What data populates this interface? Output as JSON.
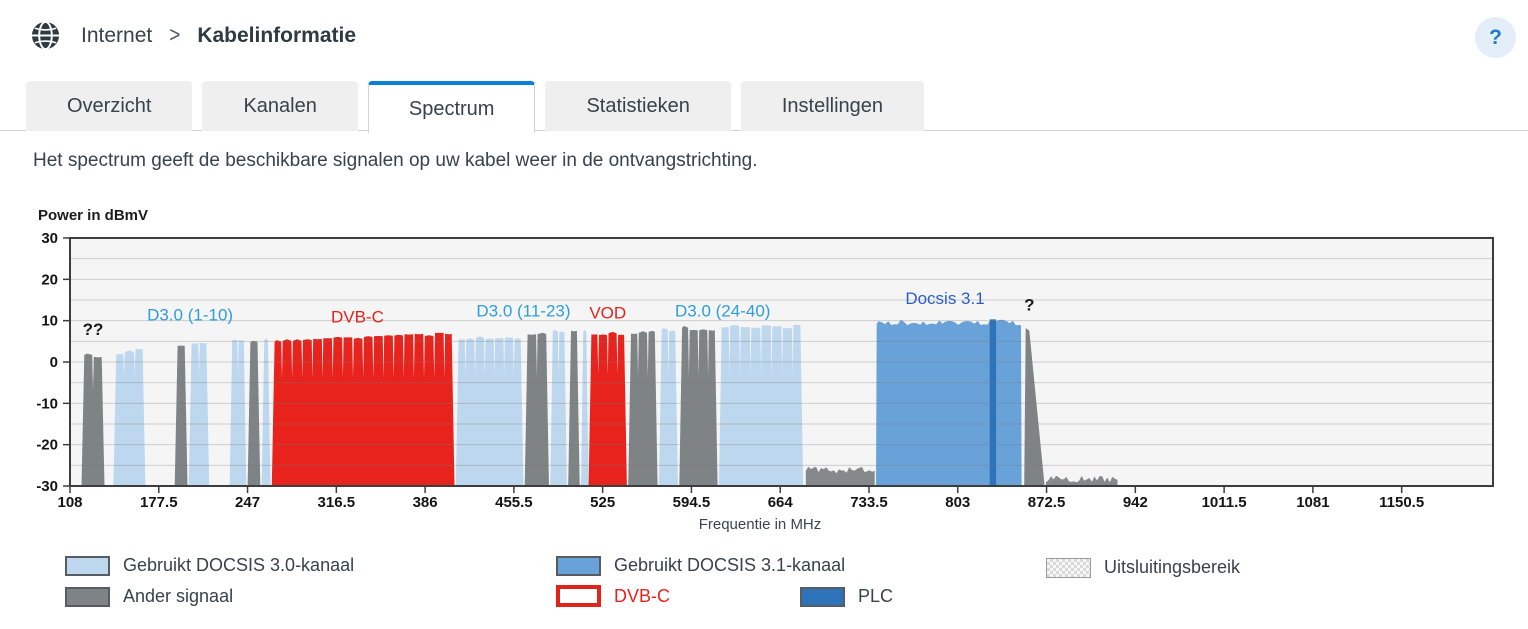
{
  "page": {
    "accent": "#0d7fd4"
  },
  "header": {
    "breadcrumb": {
      "root": "Internet",
      "separator": ">",
      "current": "Kabelinformatie"
    },
    "help": "?"
  },
  "tabs": [
    {
      "label": "Overzicht",
      "active": false
    },
    {
      "label": "Kanalen",
      "active": false
    },
    {
      "label": "Spectrum",
      "active": true
    },
    {
      "label": "Statistieken",
      "active": false
    },
    {
      "label": "Instellingen",
      "active": false
    }
  ],
  "description": "Het spectrum geeft de beschikbare signalen op uw kabel weer in de ontvangstrichting.",
  "chart_data": {
    "type": "area",
    "xlabel": "Frequentie in MHz",
    "ylabel": "Power in dBmV",
    "xlim": [
      108,
      1222
    ],
    "ylim": [
      -30,
      30
    ],
    "x_ticks": [
      108,
      177.5,
      247,
      316.5,
      386,
      455.5,
      525,
      594.5,
      664,
      733.5,
      803,
      872.5,
      942,
      1011.5,
      1081,
      1150.5
    ],
    "y_ticks": [
      30,
      20,
      10,
      0,
      -10,
      -20,
      -30
    ],
    "grid_minor_step_db": 5,
    "legend_position": "bottom",
    "colors": {
      "plot_bg": "#f5f5f6",
      "grid": "rgba(125,125,125,0.33)",
      "d30": "#bdd7ee",
      "d31": "#68a2d8",
      "plc": "#2e72ba",
      "dvbc": "#e8231d",
      "other": "#7e8386",
      "noise": "#85898c",
      "ann_d30": "#2d9ed9",
      "ann_red": "#e2231a",
      "ann_d31": "#2b5fc8",
      "ann_black": "#1a1a1a"
    },
    "annotations": [
      {
        "text": "??",
        "x": 126,
        "y": 6.5,
        "color": "#1a1a1a",
        "bold": true
      },
      {
        "text": "D3.0 (1-10)",
        "x": 202,
        "y": 10,
        "color": "#2d9ed9"
      },
      {
        "text": "DVB-C",
        "x": 333,
        "y": 9.5,
        "color": "#e2231a"
      },
      {
        "text": "D3.0 (11-23)",
        "x": 463,
        "y": 11,
        "color": "#2d9ed9"
      },
      {
        "text": "VOD",
        "x": 529,
        "y": 10.5,
        "color": "#e2231a"
      },
      {
        "text": "D3.0 (24-40)",
        "x": 619,
        "y": 11,
        "color": "#2d9ed9"
      },
      {
        "text": "Docsis 3.1",
        "x": 793,
        "y": 14,
        "color": "#2b5fc8"
      },
      {
        "text": "?",
        "x": 859,
        "y": 12.5,
        "color": "#1a1a1a",
        "bold": true
      }
    ],
    "segments": [
      {
        "type": "other",
        "from": 117,
        "to": 135,
        "top": 1.5,
        "channels": 2,
        "notch": -7
      },
      {
        "type": "d30",
        "from": 142,
        "to": 167,
        "top": 2.2,
        "topEnd": 2.9,
        "channels": 3,
        "notch": -3.5
      },
      {
        "type": "other",
        "from": 190,
        "to": 200,
        "top": 4.2,
        "channels": 1
      },
      {
        "type": "d30",
        "from": 201,
        "to": 217,
        "top": 4.9,
        "channels": 2,
        "notch": -3.5
      },
      {
        "type": "d30",
        "from": 233,
        "to": 246,
        "top": 5.4,
        "channels": 2,
        "notch": -3.5
      },
      {
        "type": "other",
        "from": 247,
        "to": 257,
        "top": 4.7,
        "channels": 1
      },
      {
        "type": "d30",
        "from": 258,
        "to": 265,
        "top": 5.2,
        "channels": 1
      },
      {
        "type": "dvbc",
        "from": 266,
        "to": 409,
        "top": 5.2,
        "topEnd": 6.8,
        "channels": 18,
        "notch": -4
      },
      {
        "type": "d30",
        "from": 410,
        "to": 463,
        "top": 5.6,
        "channels": 7,
        "notch": -3.5
      },
      {
        "type": "other",
        "from": 464,
        "to": 483,
        "top": 6.9,
        "channels": 2,
        "notch": -3.5
      },
      {
        "type": "d30",
        "from": 484,
        "to": 497,
        "top": 7.1,
        "channels": 2,
        "notch": -3.5
      },
      {
        "type": "other",
        "from": 498,
        "to": 507,
        "top": 7.3,
        "channels": 1
      },
      {
        "type": "d30",
        "from": 508,
        "to": 514,
        "top": 7.3,
        "channels": 1
      },
      {
        "type": "dvbc",
        "from": 514,
        "to": 544,
        "top": 6.8,
        "channels": 4,
        "notch": -3
      },
      {
        "type": "other",
        "from": 545,
        "to": 568,
        "top": 7.0,
        "channels": 3,
        "notch": -3.5
      },
      {
        "type": "d30",
        "from": 569,
        "to": 584,
        "top": 7.6,
        "channels": 2,
        "notch": -3.5
      },
      {
        "type": "other",
        "from": 585,
        "to": 615,
        "top": 8.0,
        "channels": 4,
        "notch": -3.5
      },
      {
        "type": "d30",
        "from": 616,
        "to": 682,
        "top": 8.6,
        "channels": 8,
        "notch": -3.5
      },
      {
        "type": "noise",
        "from": 684,
        "to": 738,
        "top": -27
      },
      {
        "type": "d31",
        "from": 739,
        "to": 853,
        "top": 10.3
      },
      {
        "type": "plc",
        "from": 828,
        "to": 833,
        "top": 10.3
      },
      {
        "type": "peak",
        "from": 855,
        "to": 871,
        "top": 8.2
      },
      {
        "type": "noise",
        "from": 872,
        "to": 928,
        "top": -29.2
      }
    ]
  },
  "legend": {
    "items": [
      {
        "key": "d30",
        "label": "Gebruikt DOCSIS 3.0-kanaal"
      },
      {
        "key": "d31",
        "label": "Gebruikt DOCSIS 3.1-kanaal"
      },
      {
        "key": "excl",
        "label": "Uitsluitingsbereik"
      },
      {
        "key": "other",
        "label": "Ander signaal"
      },
      {
        "key": "dvbc",
        "label": "DVB-C"
      },
      {
        "key": "plc",
        "label": "PLC"
      }
    ]
  }
}
